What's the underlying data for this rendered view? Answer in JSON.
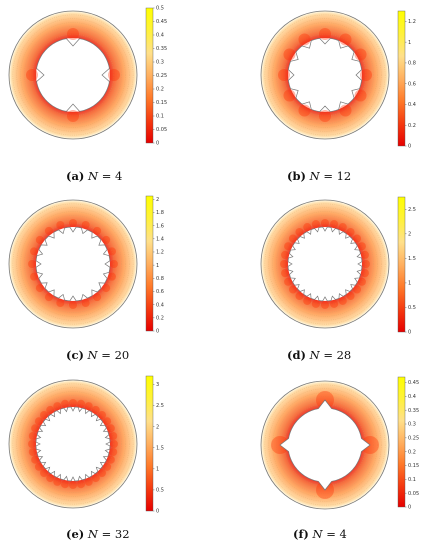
{
  "colors": {
    "colormap": [
      "#e60000",
      "#f53a10",
      "#ff7a2a",
      "#ffb060",
      "#ffe08a",
      "#fff23a",
      "#ffff00"
    ],
    "outline": "#777777"
  },
  "panels": [
    {
      "tag": "(a)",
      "var": "N",
      "eq": "=",
      "num": "4",
      "n": 4,
      "teeth_dir": "in",
      "max": 0.5,
      "ticks": [
        "0.5",
        "0.45",
        "0.4",
        "0.35",
        "0.3",
        "0.25",
        "0.2",
        "0.15",
        "0.1",
        "0.05",
        "0"
      ]
    },
    {
      "tag": "(b)",
      "var": "N",
      "eq": "=",
      "num": "12",
      "n": 12,
      "teeth_dir": "in",
      "max": 1.3,
      "ticks": [
        "1.2",
        "1",
        "0.8",
        "0.6",
        "0.4",
        "0.2",
        "0"
      ]
    },
    {
      "tag": "(c)",
      "var": "N",
      "eq": "=",
      "num": "20",
      "n": 20,
      "teeth_dir": "in",
      "max": 2.05,
      "ticks": [
        "2",
        "1.8",
        "1.6",
        "1.4",
        "1.2",
        "1",
        "0.8",
        "0.6",
        "0.4",
        "0.2",
        "0"
      ]
    },
    {
      "tag": "(d)",
      "var": "N",
      "eq": "=",
      "num": "28",
      "n": 28,
      "teeth_dir": "in",
      "max": 2.75,
      "ticks": [
        "2.5",
        "2",
        "1.5",
        "1",
        "0.5",
        "0"
      ]
    },
    {
      "tag": "(e)",
      "var": "N",
      "eq": "=",
      "num": "32",
      "n": 32,
      "teeth_dir": "in",
      "max": 3.2,
      "ticks": [
        "3",
        "2.5",
        "2",
        "1.5",
        "1",
        "0.5",
        "0"
      ]
    },
    {
      "tag": "(f)",
      "var": "N",
      "eq": "=",
      "num": "4",
      "n": 4,
      "teeth_dir": "out",
      "max": 0.47,
      "ticks": [
        "0.45",
        "0.4",
        "0.35",
        "0.3",
        "0.25",
        "0.2",
        "0.15",
        "0.1",
        "0.05",
        "0"
      ]
    }
  ]
}
